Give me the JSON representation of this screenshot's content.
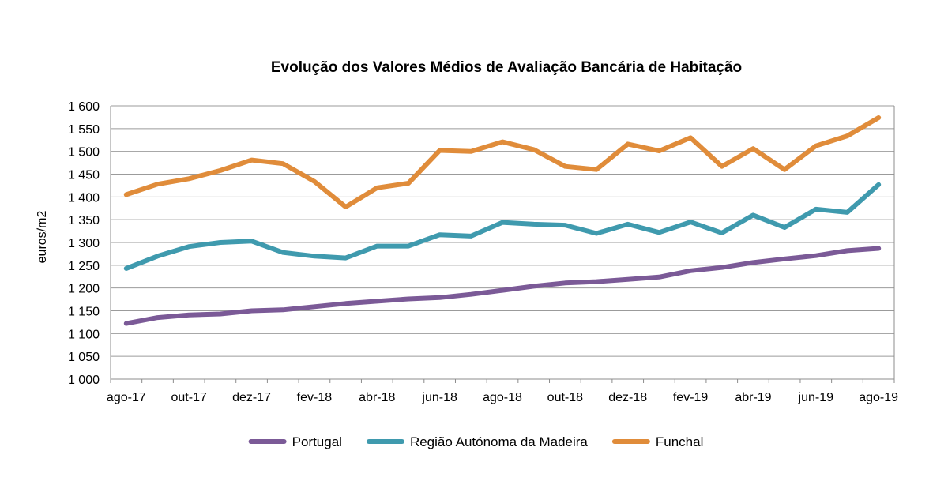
{
  "chart_data": {
    "type": "line",
    "title": "Evolução dos Valores Médios de Avaliação Bancária de Habitação",
    "ylabel": "euros/m2",
    "xlabel": "",
    "ylim": [
      1000,
      1600
    ],
    "yticks": [
      1000,
      1050,
      1100,
      1150,
      1200,
      1250,
      1300,
      1350,
      1400,
      1450,
      1500,
      1550,
      1600
    ],
    "ytick_labels": [
      "1 000",
      "1 050",
      "1 100",
      "1 150",
      "1 200",
      "1 250",
      "1 300",
      "1 350",
      "1 400",
      "1 450",
      "1 500",
      "1 550",
      "1 600"
    ],
    "x": [
      "ago-17",
      "set-17",
      "out-17",
      "nov-17",
      "dez-17",
      "jan-18",
      "fev-18",
      "mar-18",
      "abr-18",
      "mai-18",
      "jun-18",
      "jul-18",
      "ago-18",
      "set-18",
      "out-18",
      "nov-18",
      "dez-18",
      "jan-19",
      "fev-19",
      "mar-19",
      "abr-19",
      "mai-19",
      "jun-19",
      "jul-19",
      "ago-19"
    ],
    "xtick_labels": [
      "ago-17",
      "out-17",
      "dez-17",
      "fev-18",
      "abr-18",
      "jun-18",
      "ago-18",
      "out-18",
      "dez-18",
      "fev-19",
      "abr-19",
      "jun-19",
      "ago-19"
    ],
    "grid": true,
    "legend_position": "bottom",
    "series": [
      {
        "name": "Portugal",
        "color": "#7b5a97",
        "values": [
          1122,
          1135,
          1141,
          1143,
          1150,
          1152,
          1159,
          1166,
          1171,
          1176,
          1179,
          1186,
          1195,
          1204,
          1211,
          1214,
          1219,
          1224,
          1238,
          1245,
          1256,
          1264,
          1271,
          1282,
          1287
        ]
      },
      {
        "name": "Região Autónoma da Madeira",
        "color": "#3f9aae",
        "values": [
          1243,
          1270,
          1291,
          1300,
          1303,
          1278,
          1270,
          1266,
          1292,
          1292,
          1317,
          1314,
          1344,
          1340,
          1338,
          1320,
          1340,
          1322,
          1345,
          1321,
          1360,
          1333,
          1373,
          1366,
          1427
        ]
      },
      {
        "name": "Funchal",
        "color": "#e08c3a",
        "values": [
          1405,
          1428,
          1440,
          1458,
          1481,
          1473,
          1434,
          1378,
          1420,
          1430,
          1502,
          1500,
          1521,
          1504,
          1467,
          1460,
          1516,
          1501,
          1530,
          1467,
          1506,
          1460,
          1512,
          1534,
          1574
        ]
      }
    ]
  }
}
